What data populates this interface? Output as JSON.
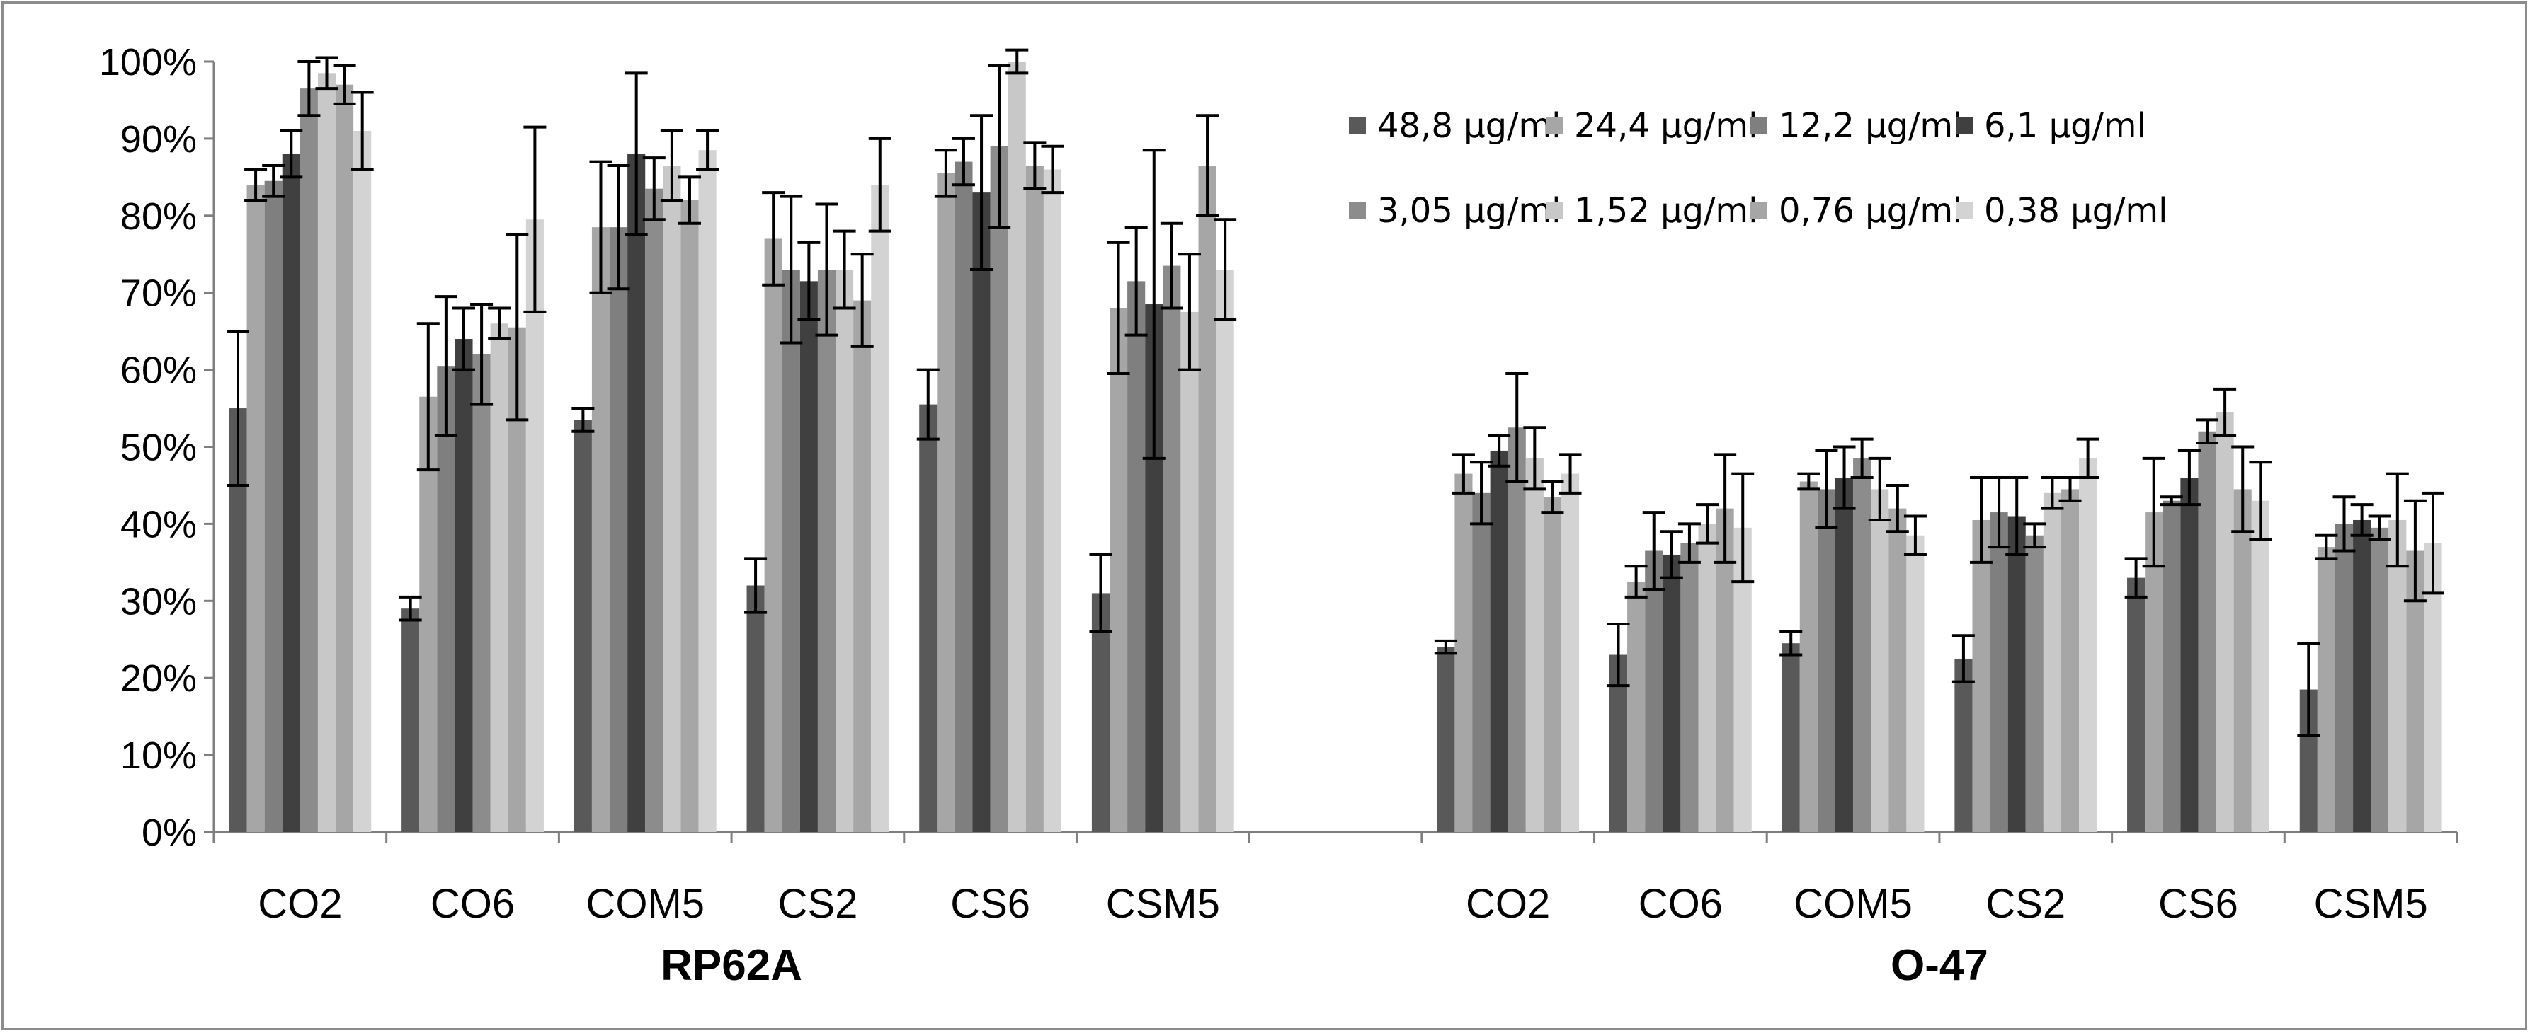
{
  "chart_data": {
    "type": "bar",
    "title": "",
    "xlabel": "",
    "ylabel": "",
    "ylim": [
      0,
      100
    ],
    "y_ticks": [
      "0%",
      "10%",
      "20%",
      "30%",
      "40%",
      "50%",
      "60%",
      "70%",
      "80%",
      "90%",
      "100%"
    ],
    "grid": false,
    "legend_position": "top-right",
    "groups": [
      {
        "label": "RP62A",
        "categories": [
          "CO2",
          "CO6",
          "COM5",
          "CS2",
          "CS6",
          "CSM5"
        ]
      },
      {
        "label": "O-47",
        "categories": [
          "CO2",
          "CO6",
          "COM5",
          "CS2",
          "CS6",
          "CSM5"
        ]
      }
    ],
    "series": [
      {
        "name": "48,8 µg/ml",
        "color": "#595959",
        "values": [
          55,
          29,
          53.5,
          32,
          55.5,
          31,
          24,
          23,
          24.5,
          22.5,
          33,
          18.5
        ],
        "errors": [
          10,
          1.5,
          1.5,
          3.5,
          4.5,
          5,
          0.8,
          4,
          1.5,
          3,
          2.5,
          6
        ]
      },
      {
        "name": "24,4 µg/ml",
        "color": "#a6a6a6",
        "values": [
          84,
          56.5,
          78.5,
          77,
          85.5,
          68,
          46.5,
          32.5,
          45.5,
          40.5,
          41.5,
          37
        ],
        "errors": [
          2,
          9.5,
          8.5,
          6,
          3,
          8.5,
          2.5,
          2,
          1,
          5.5,
          7,
          1.5
        ]
      },
      {
        "name": "12,2 µg/ml",
        "color": "#7f7f7f",
        "values": [
          84.5,
          60.5,
          78.5,
          73,
          87,
          71.5,
          44,
          36.5,
          44.5,
          41.5,
          43,
          40
        ],
        "errors": [
          2,
          9,
          8,
          9.5,
          3,
          7,
          4,
          5,
          5,
          4.5,
          0.5,
          3.5
        ]
      },
      {
        "name": "6,1 µg/ml",
        "color": "#404040",
        "values": [
          88,
          64,
          88,
          71.5,
          83,
          68.5,
          49.5,
          36,
          46,
          41,
          46,
          40.5
        ],
        "errors": [
          3,
          4,
          10.5,
          5,
          10,
          20,
          2,
          3,
          4,
          5,
          3.5,
          2
        ]
      },
      {
        "name": "3,05 µg/ml",
        "color": "#8c8c8c",
        "values": [
          96.5,
          62,
          83.5,
          73,
          89,
          73.5,
          52.5,
          37.5,
          48.5,
          38.5,
          52,
          39.5
        ],
        "errors": [
          3.5,
          6.5,
          4,
          8.5,
          10.5,
          5.5,
          7,
          2.5,
          2.5,
          1.5,
          1.5,
          1.5
        ]
      },
      {
        "name": "1,52 µg/ml",
        "color": "#c8c8c8",
        "values": [
          98.5,
          66,
          86.5,
          73,
          100,
          67.5,
          48.5,
          40,
          44.5,
          44,
          54.5,
          40.5
        ],
        "errors": [
          2,
          2,
          4.5,
          5,
          1.5,
          7.5,
          4,
          2.5,
          4,
          2,
          3,
          6
        ]
      },
      {
        "name": "0,76 µg/ml",
        "color": "#a6a6a6",
        "values": [
          97,
          65.5,
          82,
          69,
          86.5,
          86.5,
          43.5,
          42,
          42,
          44.5,
          44.5,
          36.5
        ],
        "errors": [
          2.5,
          12,
          3,
          6,
          3,
          6.5,
          2,
          7,
          3,
          1.5,
          5.5,
          6.5
        ]
      },
      {
        "name": "0,38 µg/ml",
        "color": "#d3d3d3",
        "values": [
          91,
          79.5,
          88.5,
          84,
          86,
          73,
          46.5,
          39.5,
          38.5,
          48.5,
          43,
          37.5
        ],
        "errors": [
          5,
          12,
          2.5,
          6,
          3,
          6.5,
          2.5,
          7,
          2.5,
          2.5,
          5,
          6.5
        ]
      }
    ]
  }
}
